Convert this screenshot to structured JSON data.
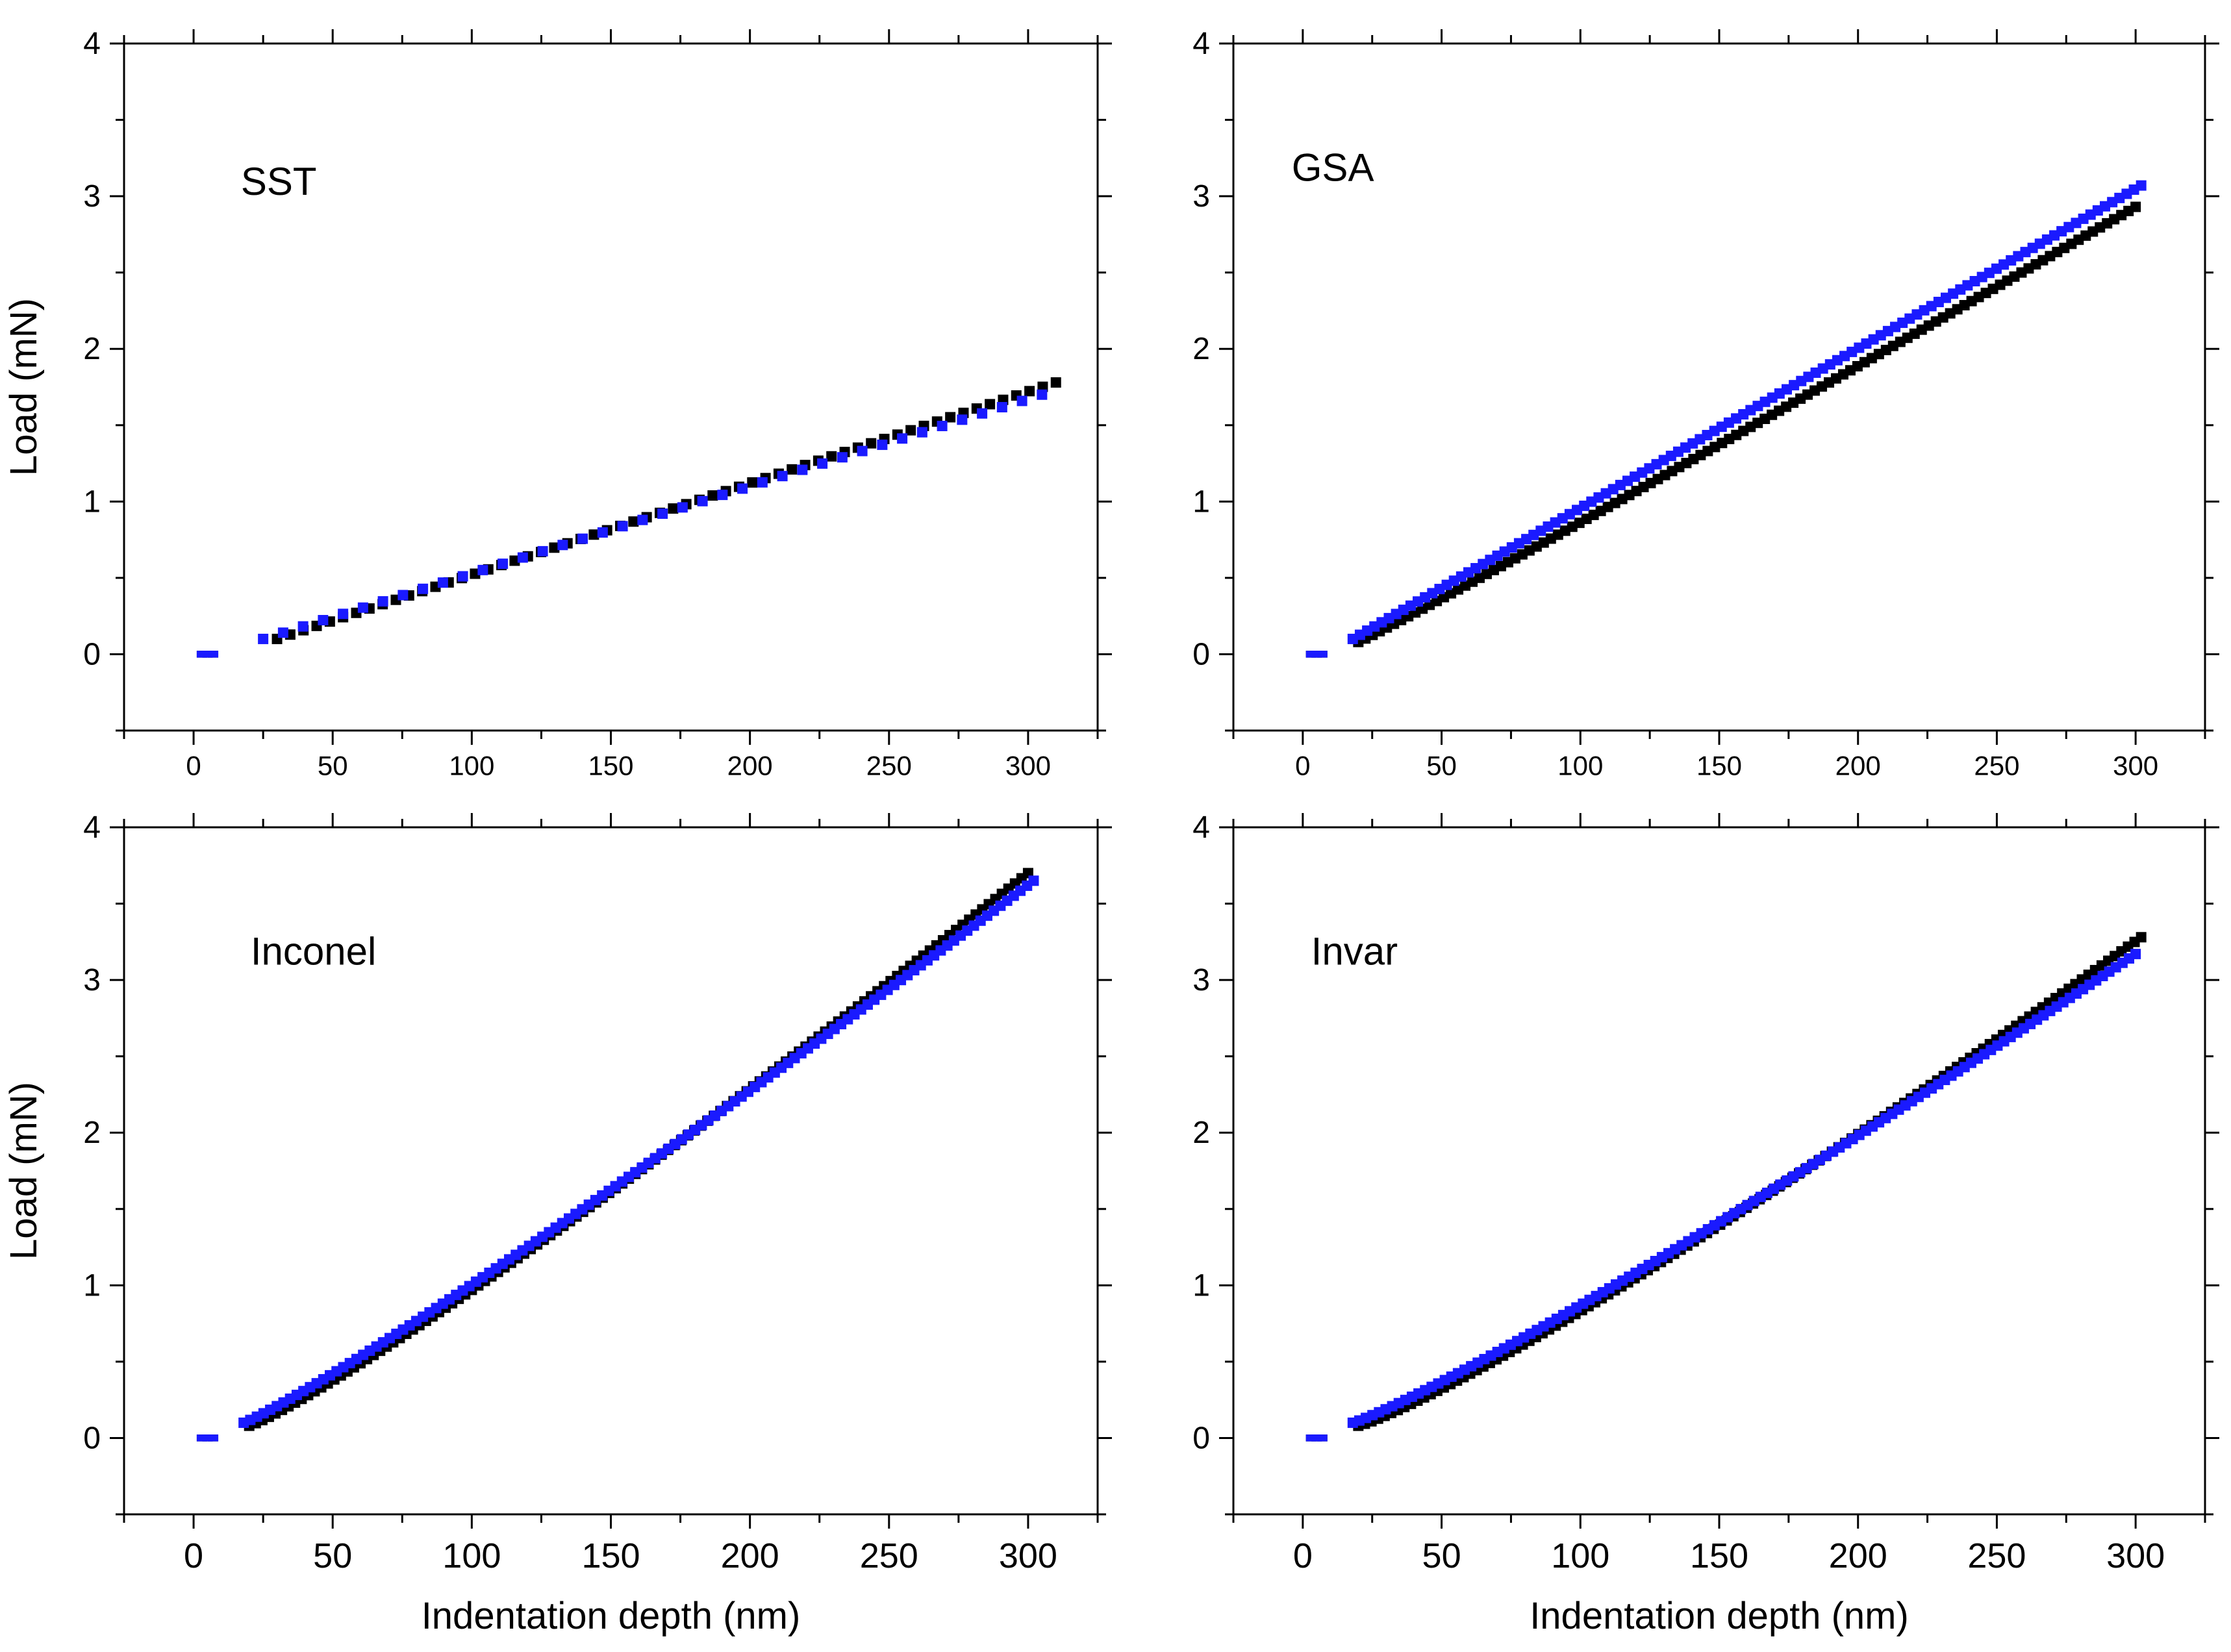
{
  "chart_data": [
    {
      "type": "scatter",
      "label": "SST",
      "xlabel": "",
      "ylabel": "Load (mN)",
      "xlim": [
        -25,
        325
      ],
      "ylim": [
        -0.5,
        4
      ],
      "xticks": [
        0,
        50,
        100,
        150,
        200,
        250,
        300
      ],
      "yticks": [
        0,
        1,
        2,
        3,
        4
      ],
      "series": [
        {
          "name": "black",
          "color": "#000000",
          "start": [
            3,
            0.0
          ],
          "from": [
            30,
            0.1
          ],
          "to": [
            310,
            1.78
          ],
          "power": 1.0,
          "points": 60
        },
        {
          "name": "blue",
          "color": "#1a1aff",
          "start": [
            3,
            0.0
          ],
          "from": [
            25,
            0.1
          ],
          "to": [
            305,
            1.7
          ],
          "power": 1.0,
          "points": 40
        }
      ]
    },
    {
      "type": "scatter",
      "label": "GSA",
      "xlabel": "",
      "ylabel": "",
      "xlim": [
        -25,
        325
      ],
      "ylim": [
        -0.5,
        4
      ],
      "xticks": [
        0,
        50,
        100,
        150,
        200,
        250,
        300
      ],
      "yticks": [
        0,
        1,
        2,
        3,
        4
      ],
      "series": [
        {
          "name": "black",
          "color": "#000000",
          "start": [
            3,
            0.0
          ],
          "from": [
            20,
            0.08
          ],
          "to": [
            300,
            2.93
          ],
          "power": 1.03,
          "points": 110
        },
        {
          "name": "blue",
          "color": "#1a1aff",
          "start": [
            3,
            0.0
          ],
          "from": [
            18,
            0.1
          ],
          "to": [
            302,
            3.07
          ],
          "power": 1.0,
          "points": 110
        }
      ]
    },
    {
      "type": "scatter",
      "label": "Inconel",
      "xlabel": "Indentation depth (nm)",
      "ylabel": "Load (mN)",
      "xlim": [
        -25,
        325
      ],
      "ylim": [
        -0.5,
        4
      ],
      "xticks": [
        0,
        50,
        100,
        150,
        200,
        250,
        300
      ],
      "yticks": [
        0,
        1,
        2,
        3,
        4
      ],
      "series": [
        {
          "name": "black",
          "color": "#000000",
          "start": [
            3,
            0.0
          ],
          "from": [
            20,
            0.08
          ],
          "to": [
            300,
            3.7
          ],
          "power": 1.12,
          "points": 120
        },
        {
          "name": "blue",
          "color": "#1a1aff",
          "start": [
            3,
            0.0
          ],
          "from": [
            18,
            0.1
          ],
          "to": [
            302,
            3.65
          ],
          "power": 1.1,
          "points": 120
        }
      ]
    },
    {
      "type": "scatter",
      "label": "Invar",
      "xlabel": "Indentation depth (nm)",
      "ylabel": "",
      "xlim": [
        -25,
        325
      ],
      "ylim": [
        -0.5,
        4
      ],
      "xticks": [
        0,
        50,
        100,
        150,
        200,
        250,
        300
      ],
      "yticks": [
        0,
        1,
        2,
        3,
        4
      ],
      "series": [
        {
          "name": "black",
          "color": "#000000",
          "start": [
            3,
            0.0
          ],
          "from": [
            20,
            0.08
          ],
          "to": [
            302,
            3.28
          ],
          "power": 1.15,
          "points": 120
        },
        {
          "name": "blue",
          "color": "#1a1aff",
          "start": [
            3,
            0.0
          ],
          "from": [
            18,
            0.1
          ],
          "to": [
            300,
            3.17
          ],
          "power": 1.12,
          "points": 120
        }
      ]
    }
  ]
}
